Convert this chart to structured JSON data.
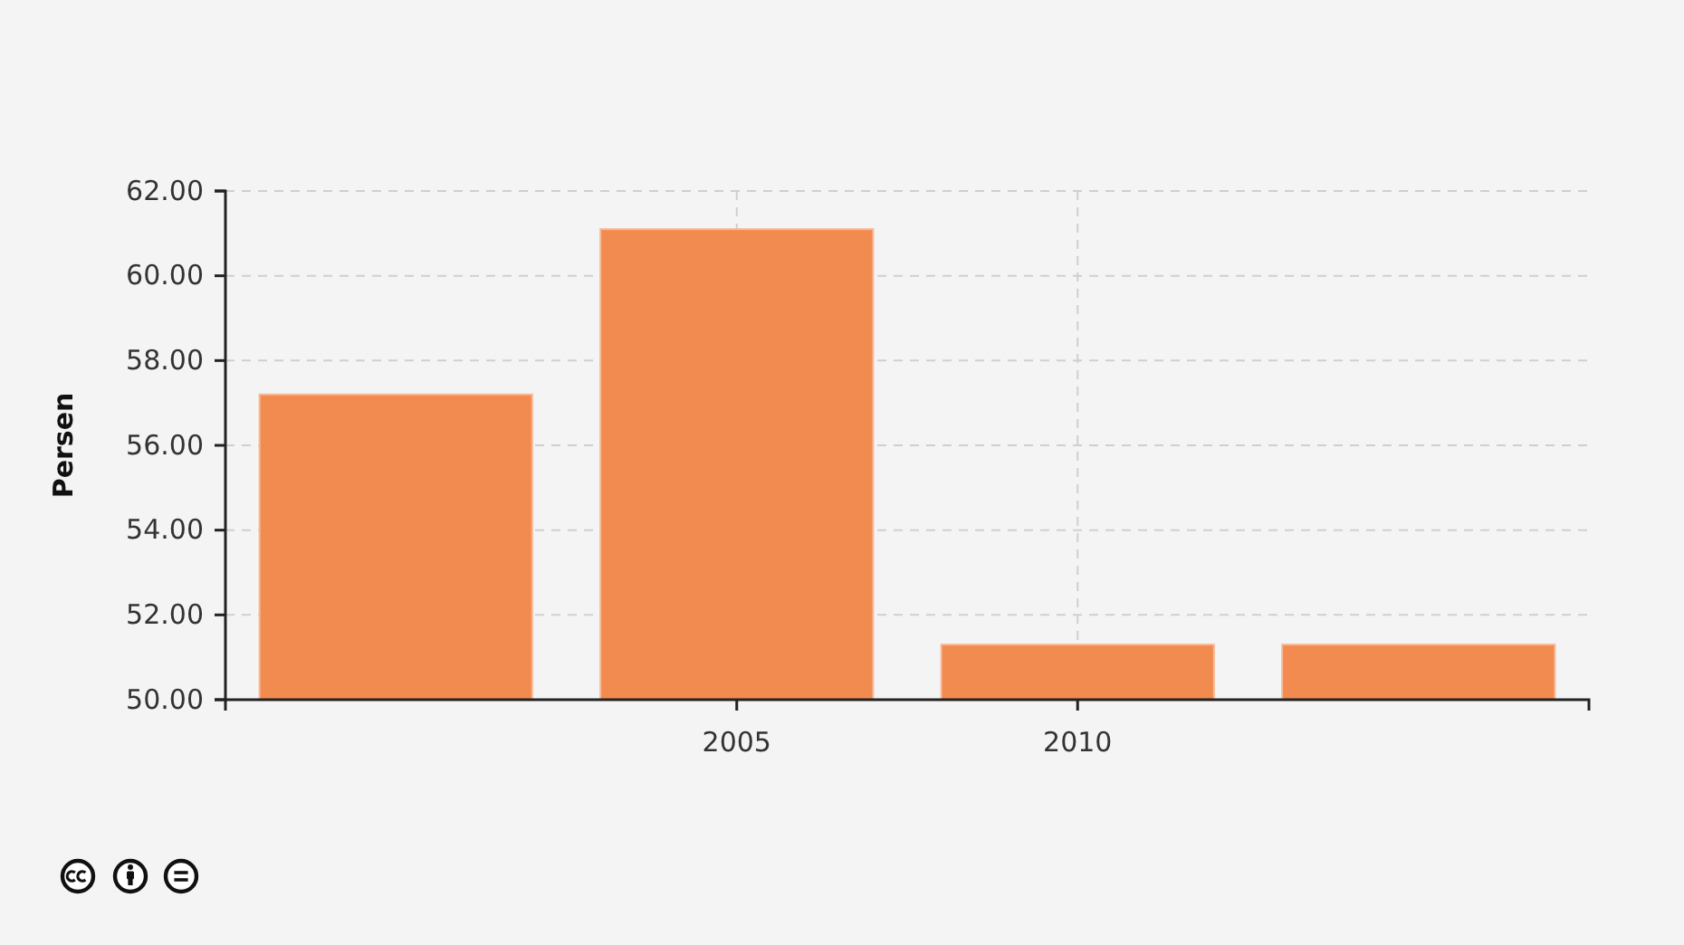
{
  "chart_data": {
    "type": "bar",
    "ylabel": "Persen",
    "x": [
      2000,
      2005,
      2010,
      2015
    ],
    "values": [
      57.2,
      61.1,
      51.3,
      51.3
    ],
    "color": "#f28b4f",
    "xlim": [
      1997.5,
      2017.5
    ],
    "xticks": [
      2005,
      2010
    ],
    "ylim": [
      50,
      62
    ],
    "yticks": [
      {
        "value": 50,
        "label": "50.00"
      },
      {
        "value": 52,
        "label": "52.00"
      },
      {
        "value": 54,
        "label": "54.00"
      },
      {
        "value": 56,
        "label": "56.00"
      },
      {
        "value": 58,
        "label": "58.00"
      },
      {
        "value": 60,
        "label": "60.00"
      },
      {
        "value": 62,
        "label": "62.00"
      }
    ],
    "grid": true
  }
}
